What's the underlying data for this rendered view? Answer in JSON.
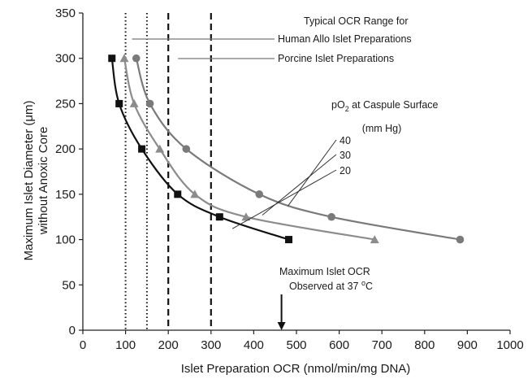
{
  "chart_data": {
    "type": "line",
    "xlabel": "Islet Preparation OCR (nmol/min/mg DNA)",
    "ylabel_line1": "Maximum Islet Diameter (μm)",
    "ylabel_line2": "without Anoxic Core",
    "xlim": [
      0,
      1000
    ],
    "ylim": [
      0,
      350
    ],
    "xticks": [
      0,
      100,
      200,
      300,
      400,
      500,
      600,
      700,
      800,
      900,
      1000
    ],
    "yticks": [
      0,
      50,
      100,
      150,
      200,
      250,
      300,
      350
    ],
    "grid": false,
    "series": [
      {
        "name": "20",
        "color": "#111111",
        "marker": "square",
        "points": [
          [
            68,
            300
          ],
          [
            85,
            250
          ],
          [
            138,
            200
          ],
          [
            222,
            150
          ],
          [
            320,
            125
          ],
          [
            482,
            100
          ]
        ]
      },
      {
        "name": "30",
        "color": "#8c8c8c",
        "marker": "triangle",
        "points": [
          [
            97,
            300
          ],
          [
            120,
            250
          ],
          [
            180,
            200
          ],
          [
            262,
            150
          ],
          [
            382,
            125
          ],
          [
            683,
            100
          ]
        ]
      },
      {
        "name": "40",
        "color": "#7a7a7a",
        "marker": "circle",
        "points": [
          [
            125,
            300
          ],
          [
            157,
            250
          ],
          [
            242,
            200
          ],
          [
            413,
            150
          ],
          [
            582,
            125
          ],
          [
            883,
            100
          ]
        ]
      }
    ],
    "vertical_lines": [
      {
        "x": 100,
        "style": "dotted",
        "group": "human"
      },
      {
        "x": 150,
        "style": "dotted",
        "group": "human"
      },
      {
        "x": 200,
        "style": "dashed",
        "group": "porcine"
      },
      {
        "x": 300,
        "style": "dashed",
        "group": "porcine"
      }
    ],
    "annotations": {
      "ocr_heading": "Typical OCR Range for",
      "human_label": "Human Allo Islet Preparations",
      "porcine_label": "Porcine Islet Preparations",
      "po2_line1_prefix": "pO",
      "po2_subscript": "2",
      "po2_line1_suffix": " at Caspule Surface",
      "po2_line2": "(mm Hg)",
      "level_40": "40",
      "level_30": "30",
      "level_20": "20",
      "max_ocr_line1": "Maximum Islet OCR",
      "max_ocr_line2_prefix": "Observed at 37 ",
      "max_ocr_superscript": "o",
      "max_ocr_line2_suffix": "C",
      "max_ocr_x": 465
    }
  }
}
